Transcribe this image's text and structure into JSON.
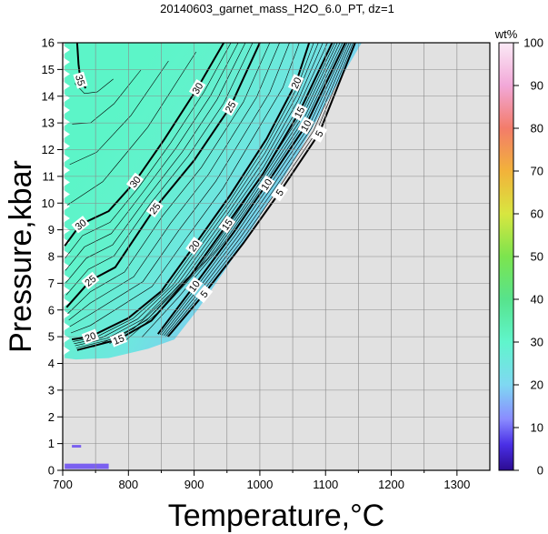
{
  "chart_data": {
    "type": "heatmap",
    "title": "20140603_garnet_mass_H2O_6.0_PT, dz=1",
    "xlabel": "Temperature,°C",
    "ylabel": "Pressure,kbar",
    "xlim": [
      700,
      1350
    ],
    "ylim": [
      0,
      16
    ],
    "x_ticks": [
      700,
      800,
      900,
      1000,
      1100,
      1200,
      1300
    ],
    "y_ticks": [
      0,
      1,
      2,
      3,
      4,
      5,
      6,
      7,
      8,
      9,
      10,
      11,
      12,
      13,
      14,
      15,
      16
    ],
    "grid": true,
    "colorbar": {
      "label": "wt%",
      "range": [
        0,
        100
      ],
      "ticks": [
        0,
        10,
        20,
        30,
        40,
        50,
        60,
        70,
        80,
        90,
        100
      ]
    },
    "contours": [
      {
        "value": 35,
        "points": [
          [
            722,
            16
          ],
          [
            724,
            15.2
          ],
          [
            727,
            14.6
          ],
          [
            735,
            14.3
          ]
        ]
      },
      {
        "value": 30,
        "points": [
          [
            703,
            8.4
          ],
          [
            727,
            9.2
          ],
          [
            770,
            9.7
          ],
          [
            810,
            10.8
          ],
          [
            855,
            12.4
          ],
          [
            905,
            14.3
          ],
          [
            945,
            16
          ]
        ]
      },
      {
        "value": 25,
        "points": [
          [
            706,
            6.1
          ],
          [
            742,
            7.1
          ],
          [
            780,
            7.6
          ],
          [
            840,
            9.8
          ],
          [
            900,
            11.6
          ],
          [
            955,
            13.6
          ],
          [
            1000,
            16
          ]
        ]
      },
      {
        "value": 20,
        "points": [
          [
            714,
            4.9
          ],
          [
            742,
            5.0
          ],
          [
            800,
            5.7
          ],
          [
            850,
            6.7
          ],
          [
            900,
            8.4
          ],
          [
            955,
            10.3
          ],
          [
            1010,
            12.4
          ],
          [
            1055,
            14.5
          ],
          [
            1075,
            16
          ]
        ]
      },
      {
        "value": 15,
        "points": [
          [
            722,
            4.5
          ],
          [
            785,
            4.9
          ],
          [
            835,
            5.6
          ],
          [
            895,
            7.3
          ],
          [
            950,
            9.2
          ],
          [
            1005,
            11.1
          ],
          [
            1060,
            13.4
          ],
          [
            1110,
            16
          ]
        ]
      },
      {
        "value": 10,
        "points": [
          [
            845,
            5.1
          ],
          [
            900,
            6.9
          ],
          [
            960,
            8.9
          ],
          [
            1010,
            10.7
          ],
          [
            1070,
            12.9
          ],
          [
            1130,
            16
          ]
        ]
      },
      {
        "value": 5,
        "points": [
          [
            860,
            5.0
          ],
          [
            915,
            6.6
          ],
          [
            975,
            8.5
          ],
          [
            1030,
            10.4
          ],
          [
            1090,
            12.6
          ],
          [
            1145,
            16
          ]
        ]
      }
    ],
    "data_boundary": [
      [
        703,
        4.2
      ],
      [
        720,
        4.15
      ],
      [
        770,
        4.2
      ],
      [
        830,
        4.55
      ],
      [
        870,
        4.9
      ],
      [
        905,
        6.0
      ],
      [
        950,
        7.6
      ],
      [
        1000,
        9.5
      ],
      [
        1050,
        11.5
      ],
      [
        1100,
        13.7
      ],
      [
        1155,
        16
      ],
      [
        703,
        16
      ]
    ],
    "minor_regions": [
      {
        "x": [
          703,
          770
        ],
        "y": [
          0.05,
          0.25
        ]
      },
      {
        "x": [
          714,
          728
        ],
        "y": [
          0.85,
          0.95
        ]
      }
    ]
  }
}
